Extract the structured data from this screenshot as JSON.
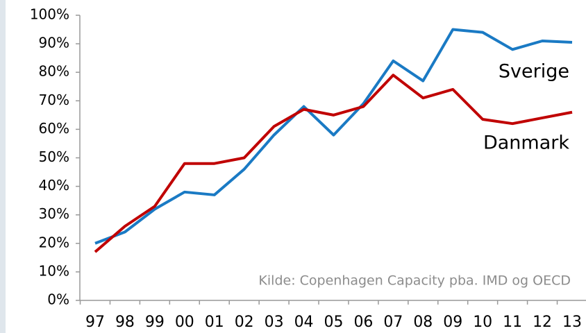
{
  "chart_data": {
    "type": "line",
    "categories": [
      "97",
      "98",
      "99",
      "00",
      "01",
      "02",
      "03",
      "04",
      "05",
      "06",
      "07",
      "08",
      "09",
      "10",
      "11",
      "12",
      "13"
    ],
    "series": [
      {
        "name": "Sverige",
        "color": "#1a7ac4",
        "values": [
          20,
          24,
          32,
          38,
          37,
          46,
          58,
          68,
          58,
          69,
          84,
          77,
          95,
          94,
          88,
          91,
          90.5
        ]
      },
      {
        "name": "Danmark",
        "color": "#c00000",
        "values": [
          17,
          26,
          33,
          48,
          48,
          50,
          61,
          67,
          65,
          68,
          79,
          71,
          74,
          63.5,
          62,
          64,
          66
        ]
      }
    ],
    "annotation": "Kilde: Copenhagen Capacity pba. IMD og OECD",
    "ylim": [
      0,
      100
    ],
    "yticks": [
      {
        "value": 0,
        "label": "0%"
      },
      {
        "value": 10,
        "label": "10%"
      },
      {
        "value": 20,
        "label": "20%"
      },
      {
        "value": 30,
        "label": "30%"
      },
      {
        "value": 40,
        "label": "40%"
      },
      {
        "value": 50,
        "label": "50%"
      },
      {
        "value": 60,
        "label": "60%"
      },
      {
        "value": 70,
        "label": "70%"
      },
      {
        "value": 80,
        "label": "80%"
      },
      {
        "value": 90,
        "label": "90%"
      },
      {
        "value": 100,
        "label": "100%"
      }
    ],
    "grid": false
  }
}
